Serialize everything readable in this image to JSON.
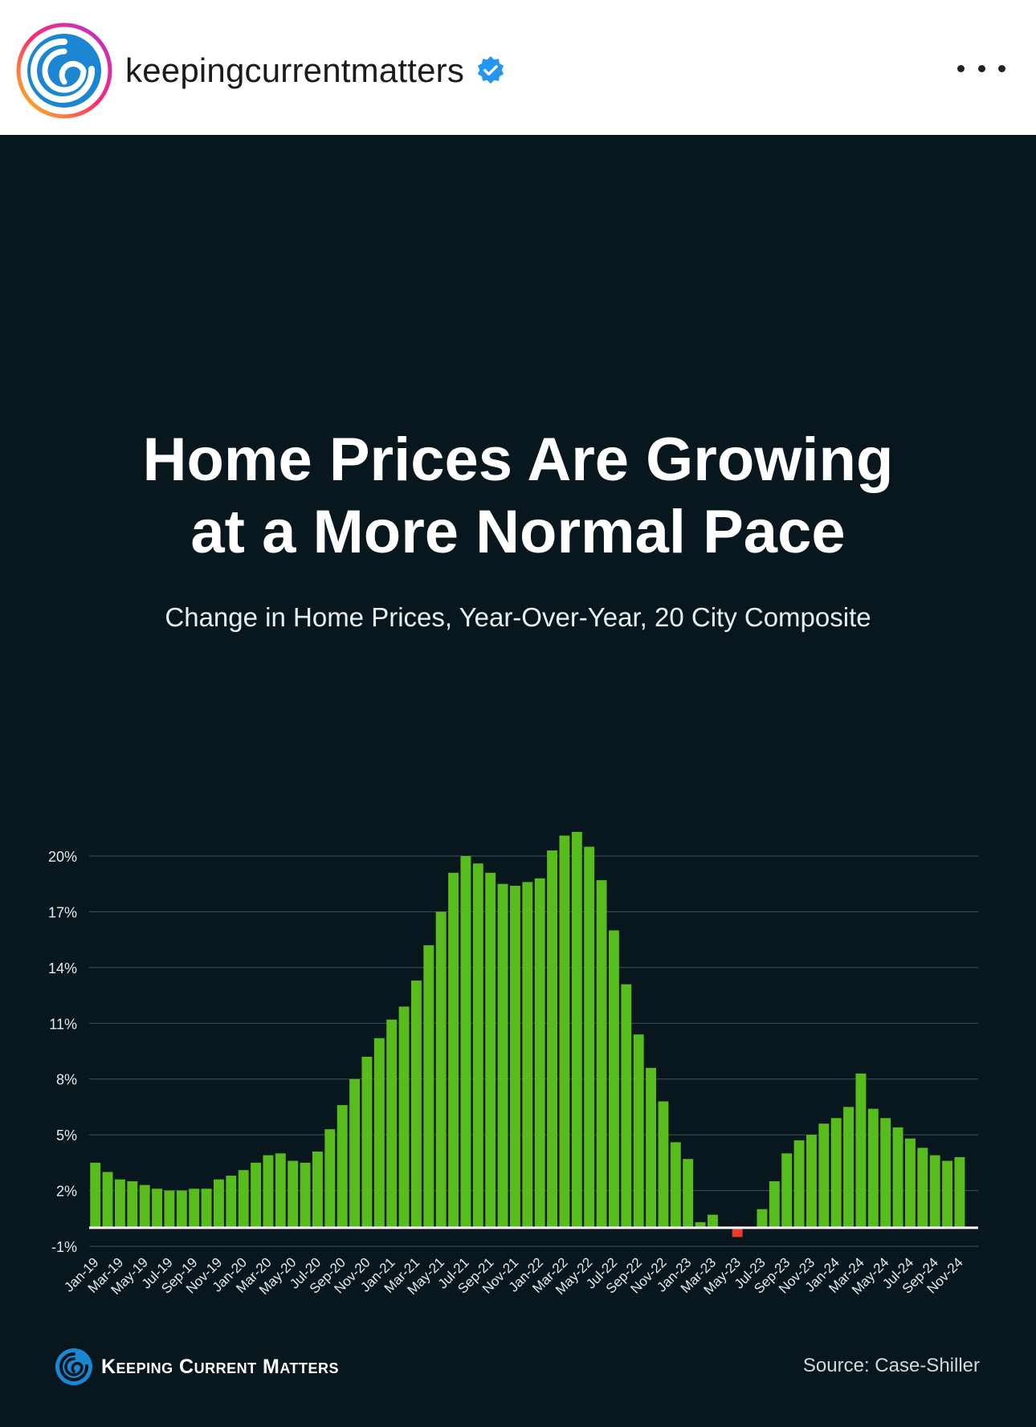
{
  "header": {
    "username": "keepingcurrentmatters",
    "verified_icon": "verified-badge-icon",
    "more_icon": "more-options-icon"
  },
  "post": {
    "title_line1": "Home Prices Are Growing",
    "title_line2": "at a More Normal Pace",
    "subtitle": "Change in Home Prices, Year-Over-Year, 20 City Composite",
    "brand_name": "Keeping Current Matters",
    "source": "Source: Case-Shiller"
  },
  "colors": {
    "background": "#08161e",
    "positive_bar": "#58bd1c",
    "negative_bar": "#ee3a2b",
    "gridline": "#44525a",
    "zero_line": "#ffffff"
  },
  "chart_data": {
    "type": "bar",
    "title": "Home Prices Are Growing at a More Normal Pace",
    "subtitle": "Change in Home Prices, Year-Over-Year, 20 City Composite",
    "ylim": [
      -1,
      20
    ],
    "yticks": [
      20,
      17,
      14,
      11,
      8,
      5,
      2,
      -1
    ],
    "ytick_labels": [
      "20%",
      "17%",
      "14%",
      "11%",
      "8%",
      "5%",
      "2%",
      "-1%"
    ],
    "grid": true,
    "xtick_labels": [
      "Jan-19",
      "Mar-19",
      "May-19",
      "Jul-19",
      "Sep-19",
      "Nov-19",
      "Jan-20",
      "Mar-20",
      "May-20",
      "Jul-20",
      "Sep-20",
      "Nov-20",
      "Jan-21",
      "Mar-21",
      "May-21",
      "Jul-21",
      "Sep-21",
      "Nov-21",
      "Jan-22",
      "Mar-22",
      "May-22",
      "Jul-22",
      "Sep-22",
      "Nov-22",
      "Jan-23",
      "Mar-23",
      "May-23",
      "Jul-23",
      "Sep-23",
      "Nov-23",
      "Jan-24",
      "Mar-24",
      "May-24",
      "Jul-24",
      "Sep-24",
      "Nov-24"
    ],
    "categories": [
      "Jan-19",
      "Feb-19",
      "Mar-19",
      "Apr-19",
      "May-19",
      "Jun-19",
      "Jul-19",
      "Aug-19",
      "Sep-19",
      "Oct-19",
      "Nov-19",
      "Dec-19",
      "Jan-20",
      "Feb-20",
      "Mar-20",
      "Apr-20",
      "May-20",
      "Jun-20",
      "Jul-20",
      "Aug-20",
      "Sep-20",
      "Oct-20",
      "Nov-20",
      "Dec-20",
      "Jan-21",
      "Feb-21",
      "Mar-21",
      "Apr-21",
      "May-21",
      "Jun-21",
      "Jul-21",
      "Aug-21",
      "Sep-21",
      "Oct-21",
      "Nov-21",
      "Dec-21",
      "Jan-22",
      "Feb-22",
      "Mar-22",
      "Apr-22",
      "May-22",
      "Jun-22",
      "Jul-22",
      "Aug-22",
      "Sep-22",
      "Oct-22",
      "Nov-22",
      "Dec-22",
      "Jan-23",
      "Feb-23",
      "Mar-23",
      "Apr-23",
      "May-23",
      "Jun-23",
      "Jul-23",
      "Aug-23",
      "Sep-23",
      "Oct-23",
      "Nov-23",
      "Dec-23",
      "Jan-24",
      "Feb-24",
      "Mar-24",
      "Apr-24",
      "May-24",
      "Jun-24",
      "Jul-24",
      "Aug-24",
      "Sep-24",
      "Oct-24",
      "Nov-24",
      "Dec-24"
    ],
    "values": [
      3.5,
      3.0,
      2.6,
      2.5,
      2.3,
      2.1,
      2.0,
      2.0,
      2.1,
      2.1,
      2.6,
      2.8,
      3.1,
      3.5,
      3.9,
      4.0,
      3.6,
      3.5,
      4.1,
      5.3,
      6.6,
      8.0,
      9.2,
      10.2,
      11.2,
      11.9,
      13.3,
      15.2,
      17.0,
      19.1,
      20.0,
      19.6,
      19.1,
      18.5,
      18.4,
      18.6,
      18.8,
      20.3,
      21.1,
      21.3,
      20.5,
      18.7,
      16.0,
      13.1,
      10.4,
      8.6,
      6.8,
      4.6,
      3.7,
      0.3,
      0.7,
      0.0,
      -0.5,
      0.0,
      1.0,
      2.5,
      4.0,
      4.7,
      5.0,
      5.6,
      5.9,
      6.5,
      8.3,
      6.4,
      5.9,
      5.4,
      4.8,
      4.3,
      3.9,
      3.6,
      3.8,
      0.0
    ]
  }
}
